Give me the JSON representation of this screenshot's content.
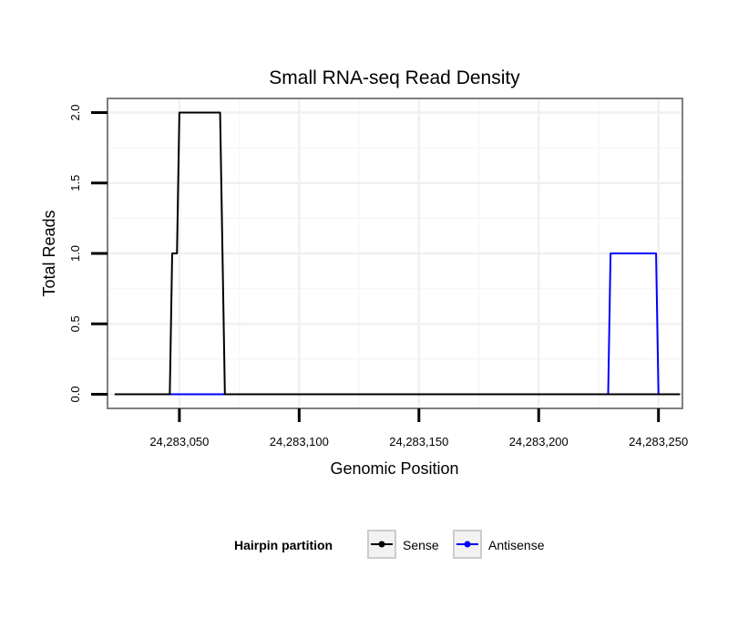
{
  "chart_data": {
    "type": "line",
    "title": "Small RNA-seq Read Density",
    "xlabel": "Genomic Position",
    "ylabel": "Total Reads",
    "xlim": [
      24283020,
      24283260
    ],
    "ylim": [
      -0.1,
      2.1
    ],
    "x_ticks": [
      24283050,
      24283100,
      24283150,
      24283200,
      24283250
    ],
    "x_tick_labels": [
      "24,283,050",
      "24,283,100",
      "24,283,150",
      "24,283,200",
      "24,283,250"
    ],
    "y_ticks": [
      0,
      0.5,
      1,
      1.5,
      2
    ],
    "y_tick_labels": [
      "0.0",
      "0.5",
      "1.0",
      "1.5",
      "2.0"
    ],
    "grid": true,
    "legend": {
      "title": "Hairpin partition",
      "position": "bottom"
    },
    "series": [
      {
        "name": "Sense",
        "color": "#000000",
        "x": [
          24283023,
          24283046,
          24283047,
          24283049,
          24283050,
          24283067,
          24283068,
          24283069,
          24283259
        ],
        "y": [
          0,
          0,
          1,
          1,
          2,
          2,
          1,
          0,
          0
        ]
      },
      {
        "name": "Antisense",
        "color": "#0000ff",
        "x": [
          24283046,
          24283229,
          24283230,
          24283249,
          24283250
        ],
        "y": [
          0,
          0,
          1,
          1,
          0
        ]
      }
    ]
  }
}
